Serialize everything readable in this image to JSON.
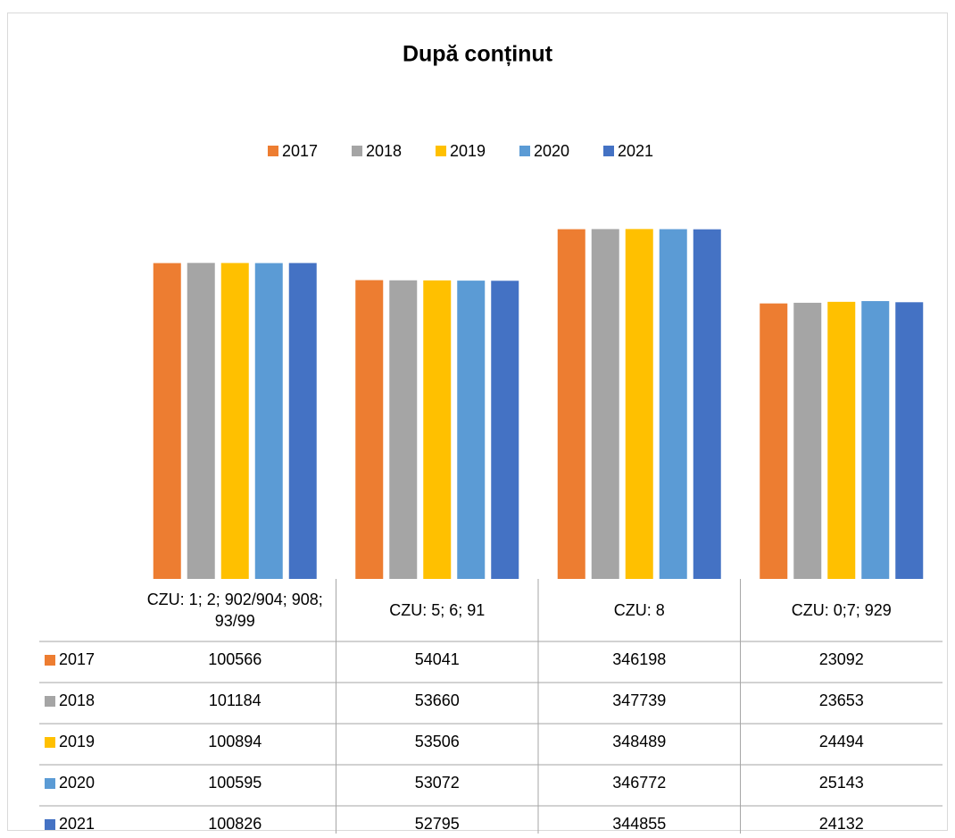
{
  "chart_data": {
    "type": "bar",
    "title": "După conținut",
    "categories": [
      "CZU: 1; 2; 902/904; 908; 93/99",
      "CZU: 5; 6; 91",
      "CZU: 8",
      "CZU: 0;7; 929"
    ],
    "series": [
      {
        "name": "2017",
        "color": "#ed7d31",
        "values": [
          100566,
          54041,
          346198,
          23092
        ]
      },
      {
        "name": "2018",
        "color": "#a5a5a5",
        "values": [
          101184,
          53660,
          347739,
          23653
        ]
      },
      {
        "name": "2019",
        "color": "#ffc000",
        "values": [
          100894,
          53506,
          348489,
          24494
        ]
      },
      {
        "name": "2020",
        "color": "#5b9bd5",
        "values": [
          100595,
          53072,
          346772,
          25143
        ]
      },
      {
        "name": "2021",
        "color": "#4472c4",
        "values": [
          100826,
          52795,
          344855,
          24132
        ]
      }
    ],
    "ylim": [
      1,
      1000000
    ],
    "log_scale": true,
    "legend": "top",
    "data_table": true
  }
}
